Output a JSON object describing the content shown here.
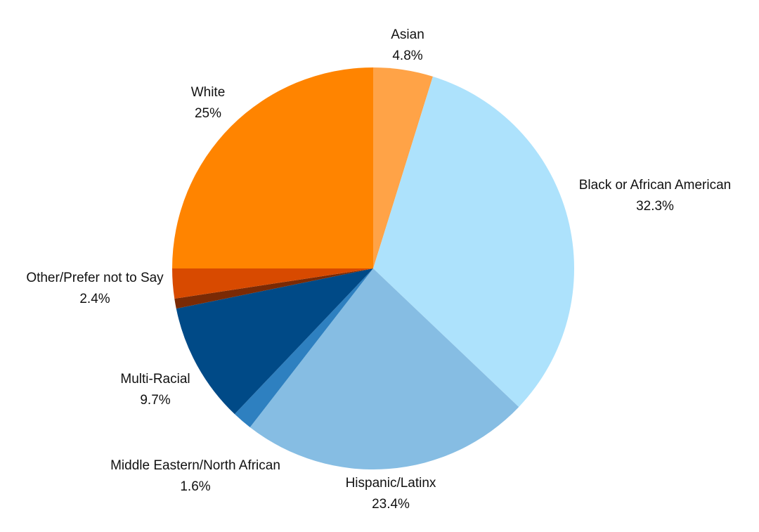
{
  "chart_data": {
    "type": "pie",
    "title": "",
    "slices": [
      {
        "label": "Asian",
        "value": 4.8,
        "value_label": "4.8%",
        "color": "#FFA347"
      },
      {
        "label": "Black or African American",
        "value": 32.3,
        "value_label": "32.3%",
        "color": "#ADE2FC"
      },
      {
        "label": "Hispanic/Latinx",
        "value": 23.4,
        "value_label": "23.4%",
        "color": "#86BDE3"
      },
      {
        "label": "Middle Eastern/North African",
        "value": 1.6,
        "value_label": "1.6%",
        "color": "#2E80C0"
      },
      {
        "label": "Multi-Racial",
        "value": 9.7,
        "value_label": "9.7%",
        "color": "#004A87"
      },
      {
        "label": "",
        "value": 0.8,
        "value_label": "",
        "color": "#7A2A05"
      },
      {
        "label": "Other/Prefer not to Say",
        "value": 2.4,
        "value_label": "2.4%",
        "color": "#D84A00"
      },
      {
        "label": "White",
        "value": 25,
        "value_label": "25%",
        "color": "#FF8400"
      }
    ],
    "start_angle": "12 o'clock",
    "direction": "clockwise",
    "legend": "none (labels outside slices)"
  }
}
